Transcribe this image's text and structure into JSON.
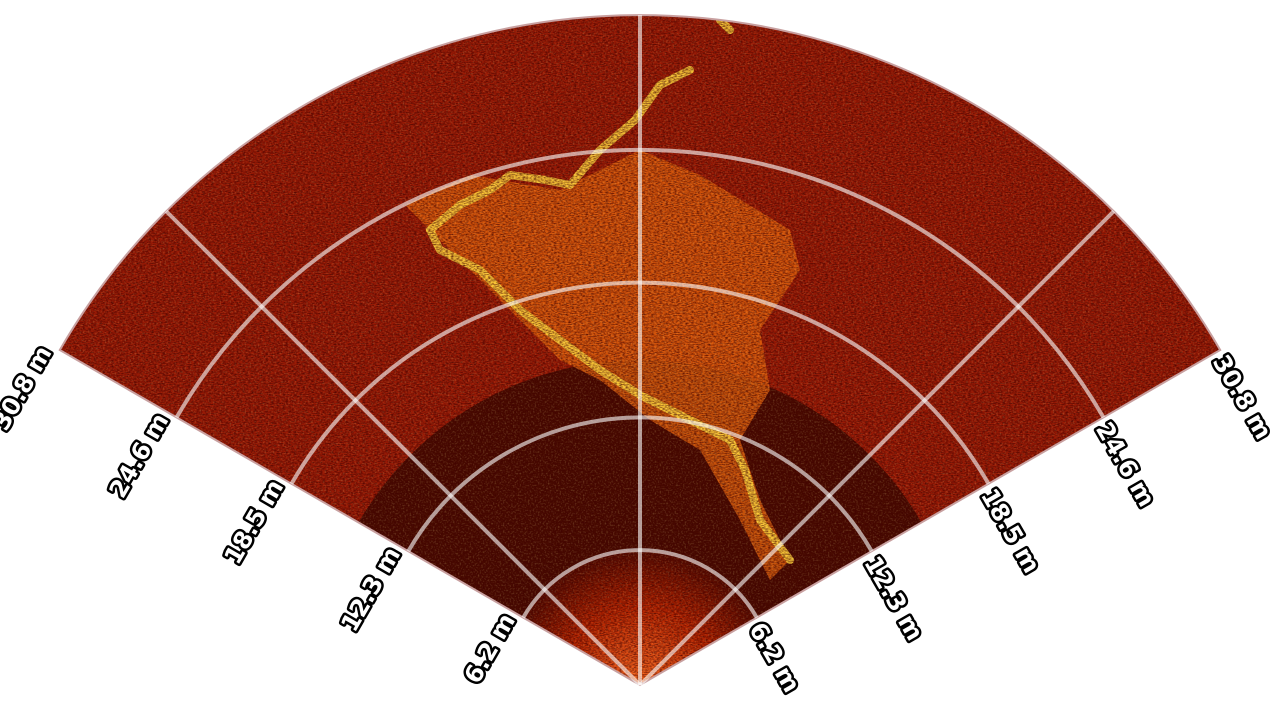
{
  "sonar": {
    "view": "sector-scan",
    "max_range_label": "30.8 m",
    "range_rings": [
      {
        "label": "6.2 m",
        "value": 6.2
      },
      {
        "label": "12.3 m",
        "value": 12.3
      },
      {
        "label": "18.5 m",
        "value": 18.5
      },
      {
        "label": "24.6 m",
        "value": 24.6
      },
      {
        "label": "30.8 m",
        "value": 30.8
      }
    ],
    "max_range": 30.8,
    "sector_half_angle_deg": 60,
    "bearing_lines_deg": [
      -45,
      0,
      45
    ],
    "colors": {
      "background": "#ffffff",
      "echo_low": "#2a0500",
      "echo_mid": "#b31e00",
      "echo_high": "#ffe040",
      "grid": "#ffffff",
      "label_fill": "#ffffff",
      "label_outline": "#000000"
    }
  }
}
